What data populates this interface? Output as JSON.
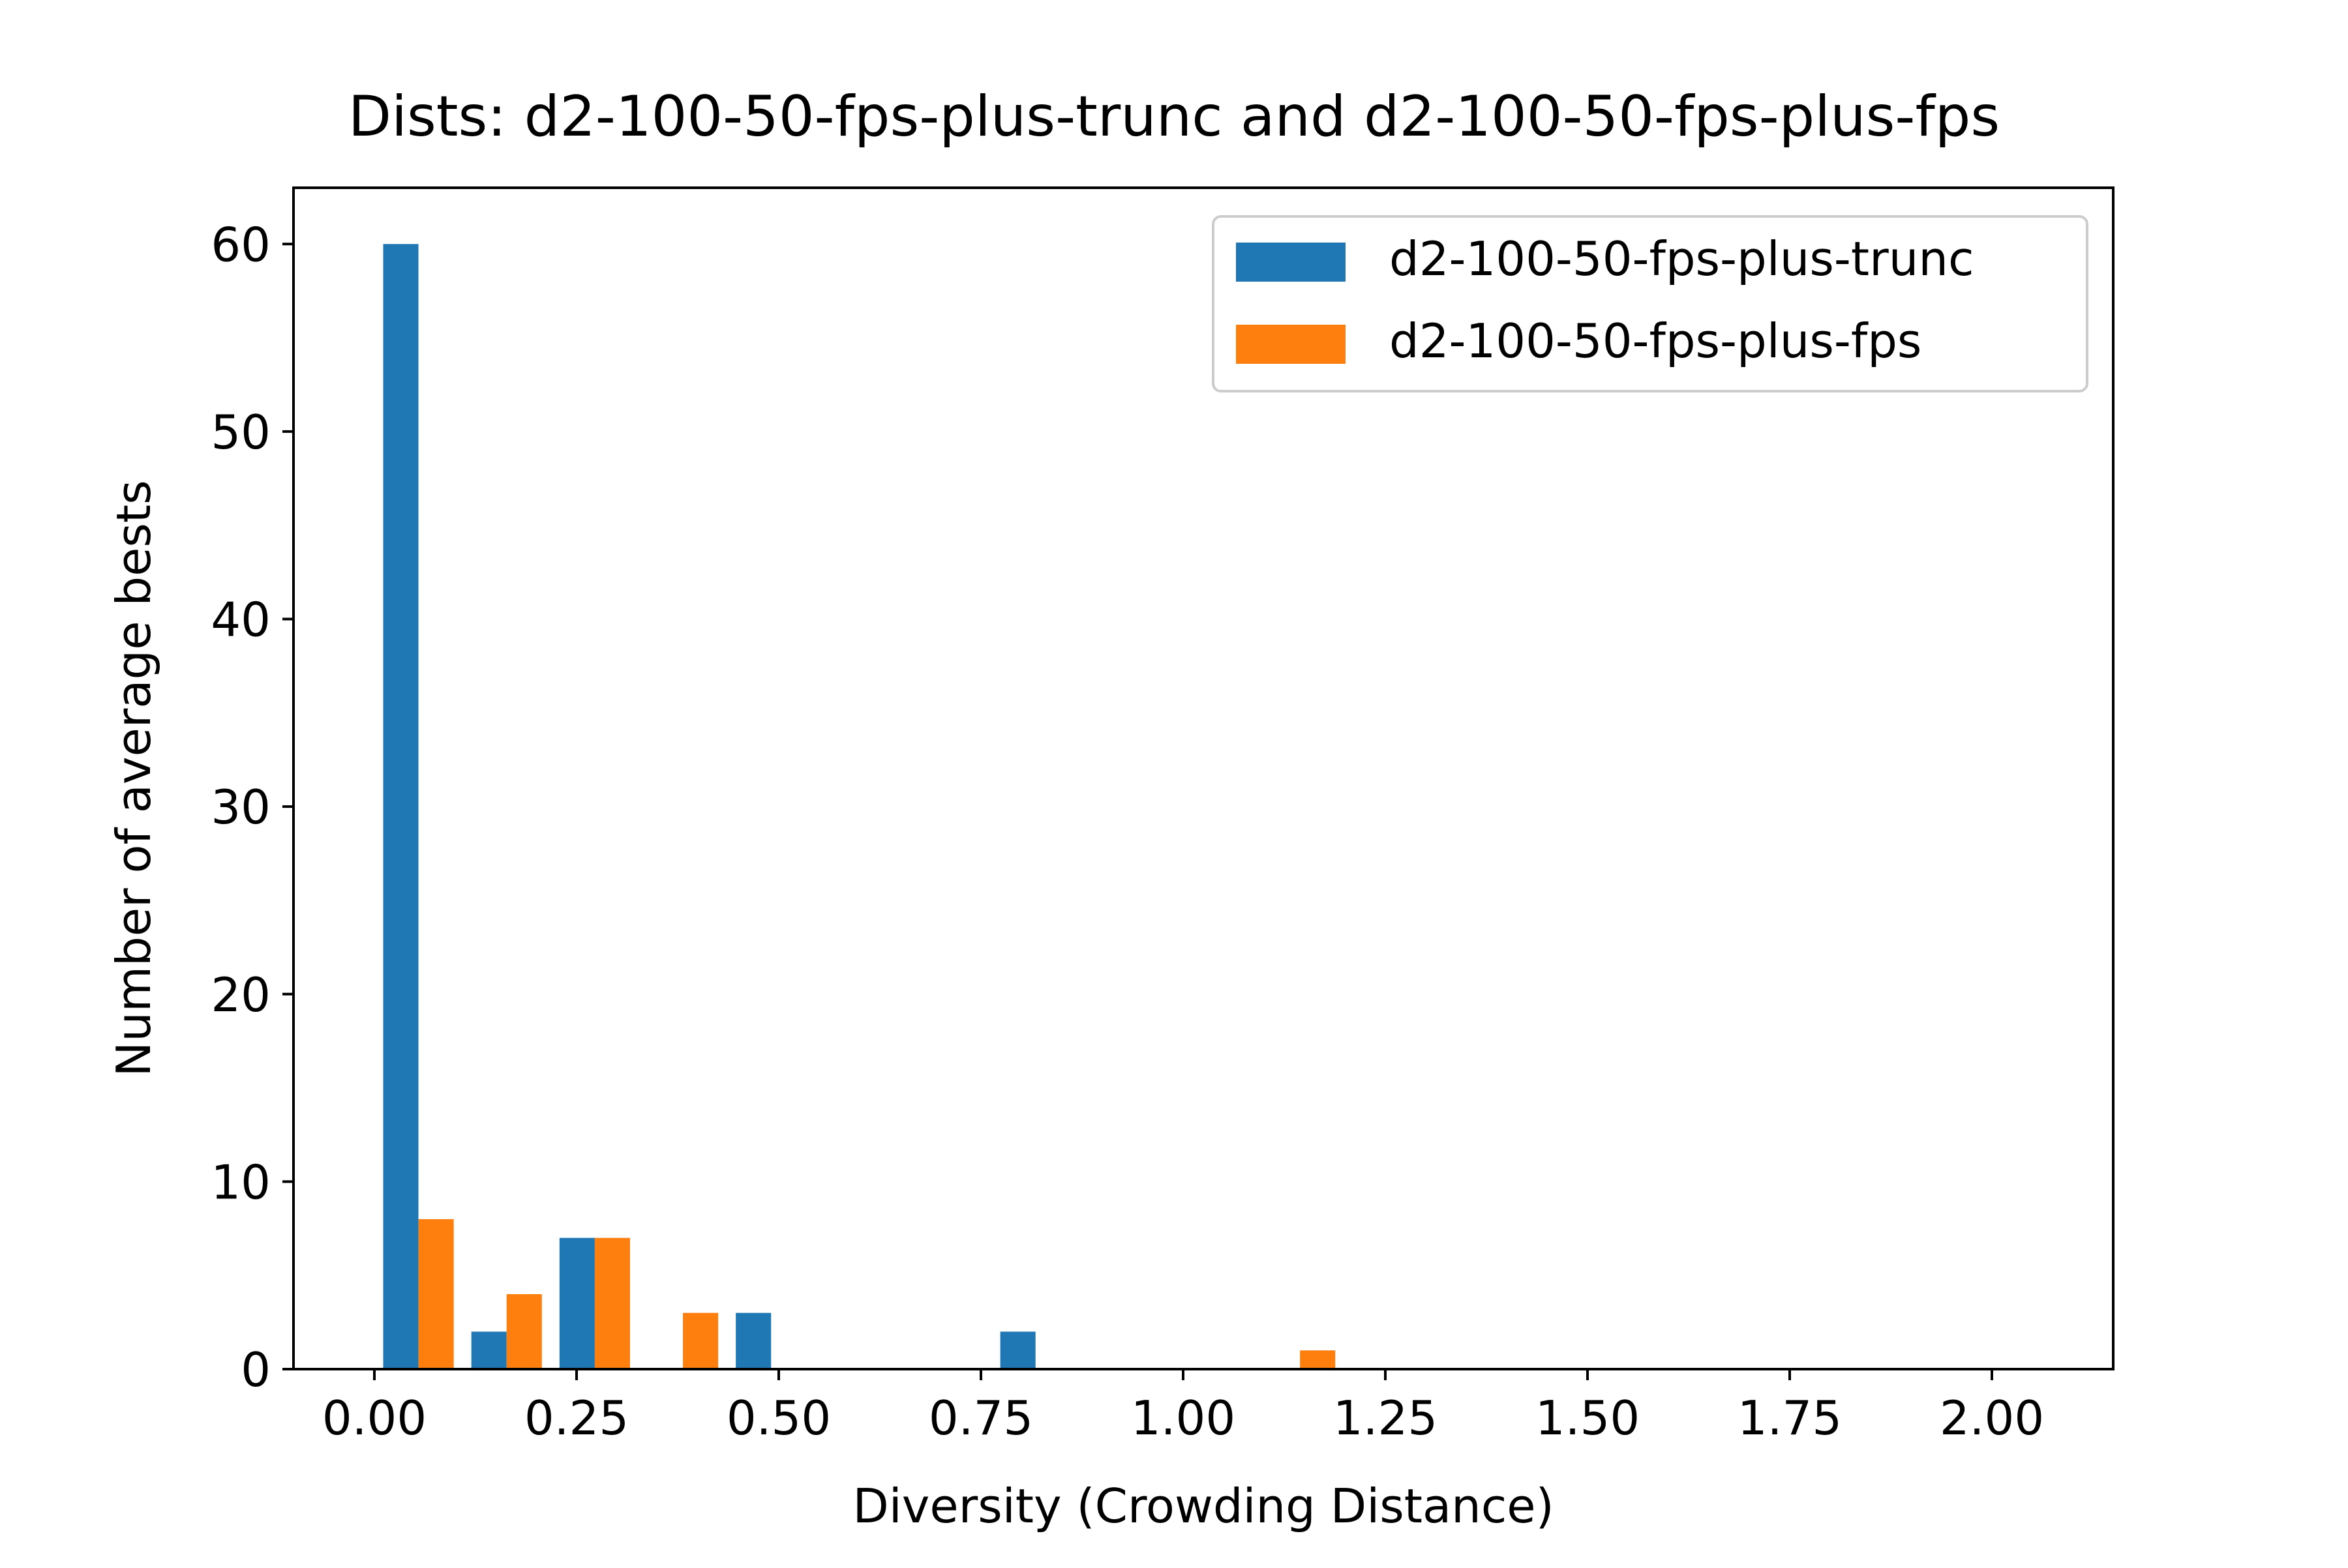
{
  "chart_data": {
    "type": "bar",
    "title": "Dists: d2-100-50-fps-plus-trunc and d2-100-50-fps-plus-fps",
    "xlabel": "Diversity (Crowding Distance)",
    "ylabel": "Number of average bests",
    "xlim": [
      -0.1,
      2.15
    ],
    "ylim": [
      0,
      63
    ],
    "xticks": [
      0.0,
      0.25,
      0.5,
      0.75,
      1.0,
      1.25,
      1.5,
      1.75,
      2.0
    ],
    "xtick_labels": [
      "0.00",
      "0.25",
      "0.50",
      "0.75",
      "1.00",
      "1.25",
      "1.50",
      "1.75",
      "2.00"
    ],
    "yticks": [
      0,
      10,
      20,
      30,
      40,
      50,
      60
    ],
    "ytick_labels": [
      "0",
      "10",
      "20",
      "30",
      "40",
      "50",
      "60"
    ],
    "bin_edges": [
      0.0,
      0.109,
      0.218,
      0.327,
      0.436,
      0.545,
      0.654,
      0.763,
      0.872,
      0.981,
      1.09,
      1.199,
      1.308,
      1.417,
      1.526,
      1.635,
      1.744,
      1.853,
      1.962,
      2.071
    ],
    "series": [
      {
        "name": "d2-100-50-fps-plus-trunc",
        "color": "#1f77b4",
        "values": [
          60,
          2,
          7,
          0,
          3,
          0,
          0,
          2,
          0,
          0,
          0,
          0,
          0,
          0,
          0,
          0,
          0,
          0,
          0
        ]
      },
      {
        "name": "d2-100-50-fps-plus-fps",
        "color": "#ff7f0e",
        "values": [
          8,
          4,
          7,
          3,
          0,
          0,
          0,
          0,
          0,
          0,
          1,
          0,
          0,
          0,
          0,
          0,
          0,
          0,
          0
        ]
      }
    ],
    "legend_position": "top-right",
    "grid": false
  }
}
